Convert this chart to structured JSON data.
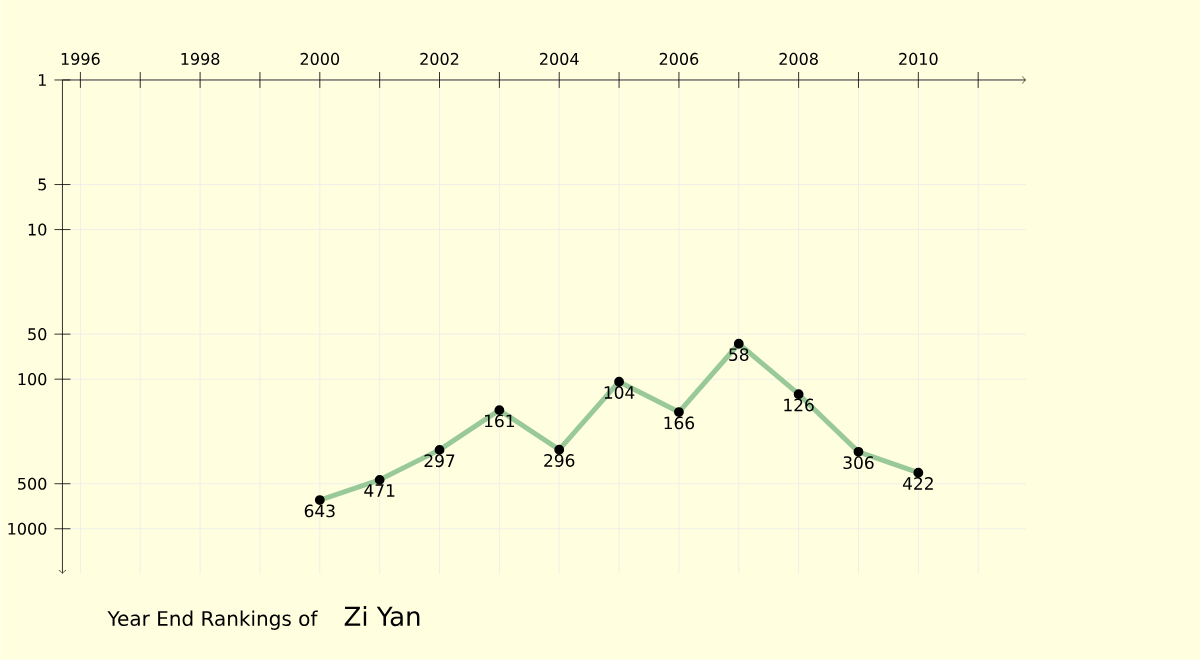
{
  "chart_data": {
    "type": "line",
    "title": "Year End Rankings of",
    "subtitle": "Zi Yan",
    "x": [
      2000,
      2001,
      2002,
      2003,
      2004,
      2005,
      2006,
      2007,
      2008,
      2009,
      2010
    ],
    "series": [
      {
        "color": "#99c999",
        "values": [
          643,
          471,
          297,
          161,
          296,
          104,
          166,
          58,
          126,
          306,
          422
        ]
      }
    ],
    "xlim": [
      1995.7,
      2011.8
    ],
    "ylim": [
      2000,
      1
    ],
    "log": "y",
    "xticks": [
      1996,
      {
        "value": 1997,
        "label": null
      },
      1998,
      {
        "value": 1999,
        "label": null
      },
      2000,
      {
        "value": 2001,
        "label": null
      },
      2002,
      {
        "value": 2003,
        "label": null
      },
      2004,
      {
        "value": 2005,
        "label": null
      },
      2006,
      {
        "value": 2007,
        "label": null
      },
      2008,
      {
        "value": 2009,
        "label": null
      },
      2010,
      {
        "value": 2011,
        "label": null
      }
    ],
    "yticks": [
      1,
      5,
      10,
      50,
      100,
      500,
      1000
    ],
    "grid": true,
    "data_labels": true,
    "marker": "circle",
    "line_style": "solid"
  }
}
